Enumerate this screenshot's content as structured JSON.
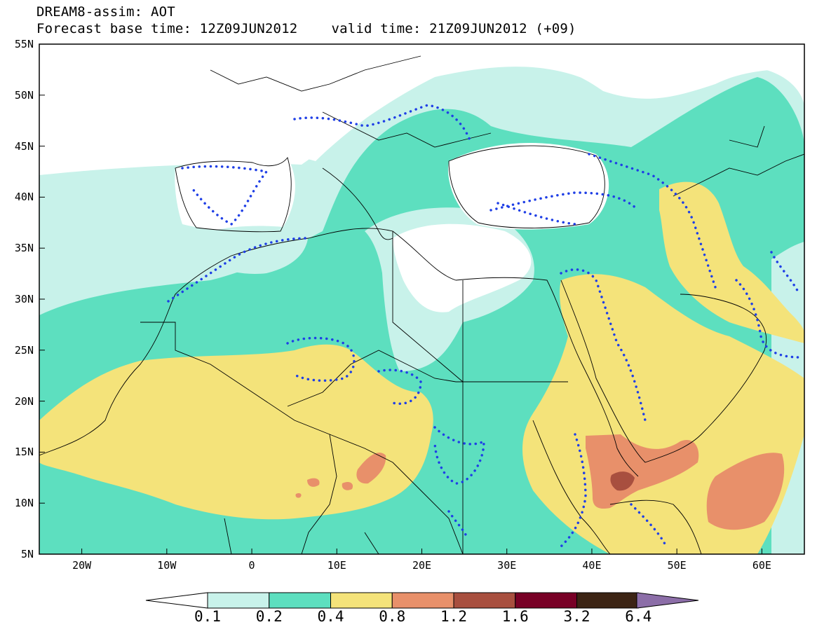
{
  "header": {
    "title": "DREAM8-assim: AOT",
    "base_label": "Forecast base time: 12Z09JUN2012",
    "valid_label": "valid time: 21Z09JUN2012 (+09)"
  },
  "map": {
    "lon_range": [
      -25,
      65
    ],
    "lat_range": [
      5,
      55
    ],
    "lat_ticks": [
      "55N",
      "50N",
      "45N",
      "40N",
      "35N",
      "30N",
      "25N",
      "20N",
      "15N",
      "10N",
      "5N"
    ],
    "lon_ticks": [
      "20W",
      "10W",
      "0",
      "10E",
      "20E",
      "30E",
      "40E",
      "50E",
      "60E"
    ]
  },
  "colorbar": {
    "labels": [
      "0.1",
      "0.2",
      "0.4",
      "0.8",
      "1.2",
      "1.6",
      "3.2",
      "6.4"
    ],
    "colors": [
      "#ffffff",
      "#c8f2ea",
      "#5ddfbf",
      "#f4e37a",
      "#e8906a",
      "#a84f3f",
      "#780026",
      "#3c2414",
      "#8c6ea8"
    ]
  }
}
